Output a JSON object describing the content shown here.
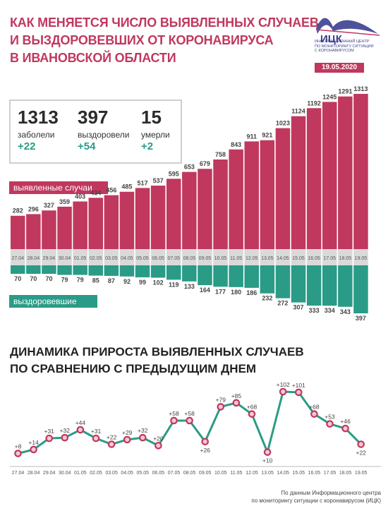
{
  "header": {
    "title_lines": [
      "Как меняется число выявленных случаев",
      "и выздоровевших от коронавируса",
      "в Ивановской области"
    ],
    "logo_name": "ИЦК",
    "logo_caption_lines": [
      "ИНФОРМАЦИОННЫЙ ЦЕНТР",
      "ПО МОНИТОРИНГУ СИТУАЦИИ",
      "С КОРОНАВИРУСОМ"
    ],
    "date": "19.05.2020"
  },
  "stats": [
    {
      "value": "1313",
      "label": "заболели",
      "delta": "+22"
    },
    {
      "value": "397",
      "label": "выздоровели",
      "delta": "+54"
    },
    {
      "value": "15",
      "label": "умерли",
      "delta": "+2"
    }
  ],
  "labels": {
    "cases": "выявленные случаи",
    "recovered": "выздоровевшие"
  },
  "second_title_lines": [
    "Динамика прироста выявленных случаев",
    "по сравнению с предыдущим днем"
  ],
  "footer_lines": [
    "По данным Информационного центра",
    "по мониторингу ситуации с коронавирусом (ИЦК)"
  ],
  "colors": {
    "pink": "#c0385e",
    "teal": "#2a9b86",
    "gray": "#d9d9d9"
  },
  "chart_data": [
    {
      "type": "bar",
      "categories": [
        "27.04",
        "28.04",
        "29.04",
        "30.04",
        "01.05",
        "02.05",
        "03.05",
        "04.05",
        "05.05",
        "06.05",
        "07.05",
        "08.05",
        "09.05",
        "10.05",
        "11.05",
        "12.05",
        "13.05",
        "14.05",
        "15.05",
        "16.05",
        "17.05",
        "18.05",
        "19.05"
      ],
      "series": [
        {
          "name": "выявленные случаи",
          "values": [
            282,
            296,
            327,
            359,
            403,
            434,
            456,
            485,
            517,
            537,
            595,
            653,
            679,
            758,
            843,
            911,
            921,
            1023,
            1124,
            1192,
            1245,
            1291,
            1313
          ]
        },
        {
          "name": "выздоровевшие",
          "values": [
            70,
            70,
            70,
            79,
            79,
            85,
            87,
            92,
            99,
            102,
            119,
            133,
            164,
            177,
            180,
            186,
            232,
            272,
            307,
            333,
            334,
            343,
            397
          ]
        }
      ]
    },
    {
      "type": "line",
      "title": "Динамика прироста выявленных случаев по сравнению с предыдущим днем",
      "categories": [
        "27.04",
        "28.04",
        "29.04",
        "30.04",
        "01.05",
        "02.05",
        "03.05",
        "04.05",
        "05.05",
        "06.05",
        "07.05",
        "08.05",
        "09.05",
        "10.05",
        "11.05",
        "12.05",
        "13.05",
        "14.05",
        "15.05",
        "16.05",
        "17.05",
        "18.05",
        "19.05"
      ],
      "values": [
        8,
        14,
        31,
        32,
        44,
        31,
        22,
        29,
        32,
        20,
        58,
        58,
        26,
        79,
        85,
        68,
        10,
        102,
        101,
        68,
        53,
        46,
        22
      ],
      "value_labels": [
        "+8",
        "+14",
        "+31",
        "+32",
        "+44",
        "+31",
        "+22",
        "+29",
        "+32",
        "+20",
        "+58",
        "+58",
        "+26",
        "+79",
        "+85",
        "+68",
        "+10",
        "+102",
        "+101",
        "+68",
        "+53",
        "+46",
        "+22"
      ]
    }
  ]
}
